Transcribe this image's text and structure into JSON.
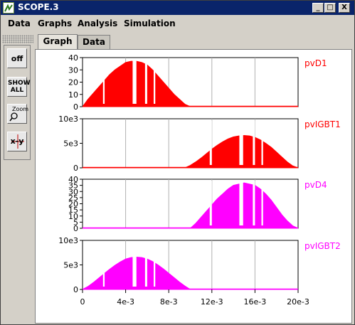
{
  "window": {
    "title": "SCOPE.3",
    "minimize_label": "_",
    "maximize_label": "□",
    "close_label": "X"
  },
  "menu": [
    "Data",
    "Graphs",
    "Analysis",
    "Simulation"
  ],
  "tabs": [
    {
      "label": "Graph",
      "active": true
    },
    {
      "label": "Data",
      "active": false
    }
  ],
  "toolbar": [
    {
      "name": "off-button",
      "label": "off"
    },
    {
      "name": "show-all-button",
      "label": "SHOW ALL"
    },
    {
      "name": "zoom-button",
      "label": "Zoom"
    },
    {
      "name": "x-y-button",
      "label": "x-y"
    }
  ],
  "colors": {
    "red": "#ff0000",
    "magenta": "#ff00ff",
    "title_bg": "#0a246a"
  },
  "chart_data": [
    {
      "type": "area",
      "name": "pvD1",
      "color": "#ff0000",
      "ylim": [
        0,
        40
      ],
      "yticks": [
        "0",
        "10",
        "20",
        "30",
        "40"
      ],
      "ytick_values": [
        0,
        10,
        20,
        30,
        40
      ],
      "x": [
        0,
        0.0005,
        0.001,
        0.0015,
        0.002,
        0.0025,
        0.003,
        0.0035,
        0.004,
        0.0045,
        0.005,
        0.0055,
        0.006,
        0.0065,
        0.007,
        0.0075,
        0.008,
        0.0085,
        0.009,
        0.0095,
        0.01,
        0.02
      ],
      "values": [
        0,
        6,
        11,
        16,
        21,
        26,
        30,
        33,
        36,
        37,
        37,
        36,
        34,
        30,
        25,
        20,
        15,
        10,
        6,
        2,
        0,
        0
      ]
    },
    {
      "type": "area",
      "name": "pvIGBT1",
      "color": "#ff0000",
      "ylim": [
        0,
        10000
      ],
      "yticks": [
        "0",
        "5e3",
        "10e3"
      ],
      "ytick_values": [
        0,
        5000,
        10000
      ],
      "x": [
        0,
        0.0095,
        0.01,
        0.0105,
        0.011,
        0.0115,
        0.012,
        0.0125,
        0.013,
        0.0135,
        0.014,
        0.0145,
        0.015,
        0.0155,
        0.016,
        0.0165,
        0.017,
        0.0175,
        0.018,
        0.0185,
        0.019,
        0.0195,
        0.02
      ],
      "values": [
        0,
        0,
        500,
        1200,
        2000,
        2900,
        3800,
        4600,
        5300,
        5900,
        6300,
        6500,
        6600,
        6500,
        6200,
        5700,
        5000,
        4200,
        3200,
        2200,
        1200,
        400,
        0
      ]
    },
    {
      "type": "area",
      "name": "pvD4",
      "color": "#ff00ff",
      "ylim": [
        0,
        40
      ],
      "yticks": [
        "0",
        "5",
        "10",
        "15",
        "20",
        "25",
        "30",
        "35",
        "40"
      ],
      "ytick_values": [
        0,
        5,
        10,
        15,
        20,
        25,
        30,
        35,
        40
      ],
      "x": [
        0,
        0.01,
        0.0105,
        0.011,
        0.0115,
        0.012,
        0.0125,
        0.013,
        0.0135,
        0.014,
        0.0145,
        0.015,
        0.0155,
        0.016,
        0.0165,
        0.017,
        0.0175,
        0.018,
        0.0185,
        0.019,
        0.0195,
        0.02
      ],
      "values": [
        0,
        0,
        4,
        9,
        14,
        19,
        24,
        28,
        32,
        35,
        36,
        37,
        36,
        35,
        32,
        28,
        23,
        17,
        11,
        6,
        2,
        0
      ]
    },
    {
      "type": "area",
      "name": "pvIGBT2",
      "color": "#ff00ff",
      "ylim": [
        0,
        10000
      ],
      "yticks": [
        "0",
        "5e3",
        "10e3"
      ],
      "ytick_values": [
        0,
        5000,
        10000
      ],
      "x": [
        0,
        0.0005,
        0.001,
        0.0015,
        0.002,
        0.0025,
        0.003,
        0.0035,
        0.004,
        0.0045,
        0.005,
        0.0055,
        0.006,
        0.0065,
        0.007,
        0.0075,
        0.008,
        0.0085,
        0.009,
        0.0095,
        0.01,
        0.02
      ],
      "values": [
        0,
        600,
        1400,
        2300,
        3200,
        4100,
        4900,
        5600,
        6200,
        6500,
        6600,
        6500,
        6200,
        5700,
        5000,
        4200,
        3300,
        2400,
        1500,
        700,
        0,
        0
      ]
    }
  ],
  "x_axis": {
    "xlim": [
      0,
      0.02
    ],
    "ticks": [
      "0",
      "4e-3",
      "8e-3",
      "12e-3",
      "16e-3",
      "20e-3"
    ],
    "tick_values": [
      0,
      0.004,
      0.008,
      0.012,
      0.016,
      0.02
    ]
  }
}
